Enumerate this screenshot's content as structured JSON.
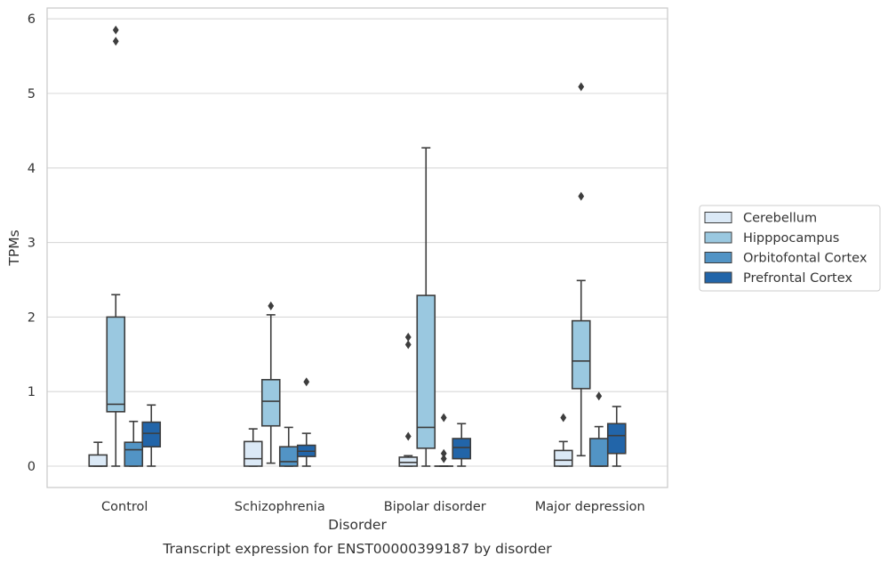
{
  "chart_data": {
    "type": "box",
    "xlabel": "Disorder",
    "ylabel": "TPMs",
    "caption": "Transcript expression for ENST00000399187 by disorder",
    "ylim": [
      -0.28,
      6.13
    ],
    "yticks": [
      0,
      1,
      2,
      3,
      4,
      5,
      6
    ],
    "grid": "horizontal",
    "legend_position": "right",
    "categories": [
      "Control",
      "Schizophrenia",
      "Bipolar disorder",
      "Major depression"
    ],
    "series": [
      {
        "name": "Cerebellum",
        "color": "#dbe9f6",
        "boxes": [
          {
            "min": 0.0,
            "q1": 0.0,
            "median": 0.0,
            "q3": 0.15,
            "max": 0.32,
            "outliers": []
          },
          {
            "min": 0.0,
            "q1": 0.0,
            "median": 0.1,
            "q3": 0.33,
            "max": 0.5,
            "outliers": []
          },
          {
            "min": 0.0,
            "q1": 0.0,
            "median": 0.05,
            "q3": 0.12,
            "max": 0.14,
            "outliers": [
              0.4,
              1.63,
              1.73
            ]
          },
          {
            "min": 0.0,
            "q1": 0.0,
            "median": 0.08,
            "q3": 0.21,
            "max": 0.33,
            "outliers": [
              0.65
            ]
          }
        ]
      },
      {
        "name": "Hipppocampus",
        "color": "#9ac8e0",
        "boxes": [
          {
            "min": 0.0,
            "q1": 0.73,
            "median": 0.83,
            "q3": 2.0,
            "max": 2.3,
            "outliers": [
              5.7,
              5.85
            ]
          },
          {
            "min": 0.04,
            "q1": 0.54,
            "median": 0.87,
            "q3": 1.16,
            "max": 2.03,
            "outliers": [
              2.15
            ]
          },
          {
            "min": 0.0,
            "q1": 0.24,
            "median": 0.52,
            "q3": 2.29,
            "max": 4.27,
            "outliers": []
          },
          {
            "min": 0.14,
            "q1": 1.04,
            "median": 1.41,
            "q3": 1.95,
            "max": 2.49,
            "outliers": [
              3.62,
              5.09
            ]
          }
        ]
      },
      {
        "name": "Orbitofontal Cortex",
        "color": "#5294c5",
        "boxes": [
          {
            "min": 0.0,
            "q1": 0.0,
            "median": 0.22,
            "q3": 0.32,
            "max": 0.6,
            "outliers": []
          },
          {
            "min": 0.0,
            "q1": 0.0,
            "median": 0.06,
            "q3": 0.26,
            "max": 0.52,
            "outliers": []
          },
          {
            "min": 0.0,
            "q1": 0.0,
            "median": 0.0,
            "q3": 0.0,
            "max": 0.0,
            "outliers": [
              0.1,
              0.17,
              0.65
            ]
          },
          {
            "min": 0.0,
            "q1": 0.0,
            "median": 0.0,
            "q3": 0.37,
            "max": 0.53,
            "outliers": [
              0.94
            ]
          }
        ]
      },
      {
        "name": "Prefrontal Cortex",
        "color": "#2265a9",
        "boxes": [
          {
            "min": 0.0,
            "q1": 0.26,
            "median": 0.44,
            "q3": 0.59,
            "max": 0.82,
            "outliers": []
          },
          {
            "min": 0.0,
            "q1": 0.13,
            "median": 0.2,
            "q3": 0.28,
            "max": 0.44,
            "outliers": [
              1.13
            ]
          },
          {
            "min": 0.0,
            "q1": 0.1,
            "median": 0.25,
            "q3": 0.37,
            "max": 0.57,
            "outliers": []
          },
          {
            "min": 0.0,
            "q1": 0.17,
            "median": 0.41,
            "q3": 0.57,
            "max": 0.8,
            "outliers": []
          }
        ]
      }
    ]
  }
}
